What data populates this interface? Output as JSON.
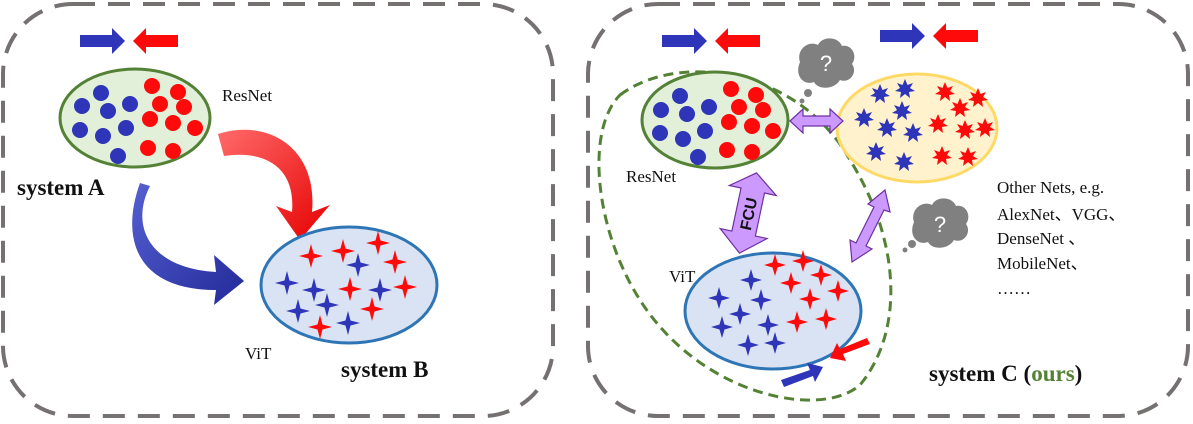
{
  "colors": {
    "blue": "#2e35b8",
    "red": "#ff0a0a",
    "green_fill": "#e2efd9",
    "green_stroke": "#538135",
    "blue_fill": "#dae3f3",
    "blue_stroke": "#2e75b6",
    "yellow_fill": "#fff2cc",
    "yellow_stroke": "#ffd966",
    "purple_fill": "#cc99ff",
    "purple_stroke": "#7030a0",
    "panel_border": "#767171",
    "ours_green": "#548235",
    "cloud_gray": "#808080"
  },
  "system_a": {
    "title": "system A",
    "resnet_label": "ResNet"
  },
  "system_b": {
    "title": "system B",
    "vit_label": "ViT"
  },
  "system_c": {
    "title_prefix": "system C (",
    "title_ours": "ours",
    "title_suffix": ")",
    "resnet_label": "ResNet",
    "vit_label": "ViT",
    "fcu_label": "FCU",
    "question_mark": "?",
    "other_nets": [
      "Other Nets, e.g.",
      "AlexNet、VGG、",
      "DenseNet 、",
      "MobileNet、",
      "……"
    ]
  }
}
